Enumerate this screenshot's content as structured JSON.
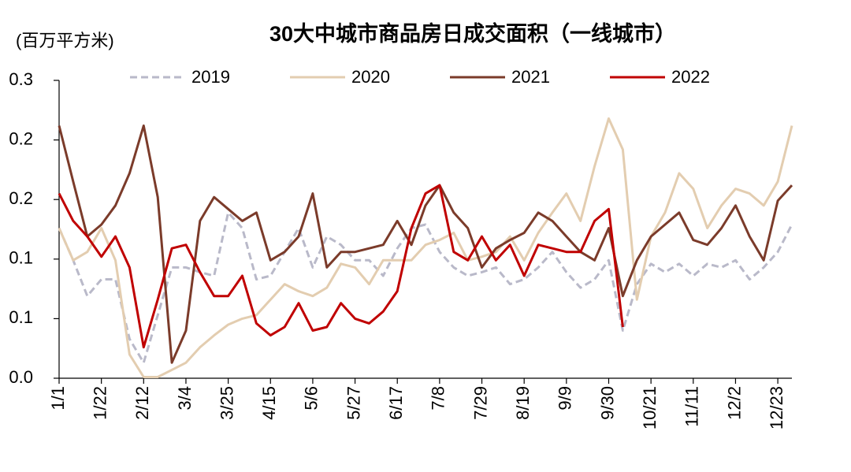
{
  "chart_data": {
    "type": "line",
    "title": "30大中城市商品房日成交面积（一线城市）",
    "y_label": "(百万平方米)",
    "categories": [
      "1/1",
      null,
      null,
      "1/22",
      null,
      null,
      "2/12",
      null,
      null,
      "3/4",
      null,
      null,
      "3/25",
      null,
      null,
      "4/15",
      null,
      null,
      "5/6",
      null,
      null,
      "5/27",
      null,
      null,
      "6/17",
      null,
      null,
      "7/8",
      null,
      null,
      "7/29",
      null,
      null,
      "8/19",
      null,
      null,
      "9/9",
      null,
      null,
      "9/30",
      null,
      null,
      "10/21",
      null,
      null,
      "11/11",
      null,
      null,
      "12/2",
      null,
      null,
      "12/23",
      null
    ],
    "ylim": [
      0,
      0.25
    ],
    "yticks": [
      {
        "value": 0,
        "label": "0.0"
      },
      {
        "value": 0.05,
        "label": "0.1"
      },
      0.1,
      {
        "value": 0.15,
        "label": "0.2"
      },
      0.2,
      {
        "value": 0.25,
        "label": "0.3"
      }
    ],
    "grid": false,
    "legend": "top",
    "series": [
      {
        "name": "2019",
        "color": "#b9b9c9",
        "dash": true,
        "values": [
          0.126,
          0.099,
          0.069,
          0.083,
          0.083,
          0.033,
          0.013,
          0.053,
          0.093,
          0.093,
          0.089,
          0.086,
          0.139,
          0.126,
          0.083,
          0.086,
          0.106,
          0.126,
          0.093,
          0.119,
          0.112,
          0.099,
          0.099,
          0.086,
          0.109,
          0.126,
          0.129,
          0.106,
          0.093,
          0.086,
          0.089,
          0.093,
          0.079,
          0.083,
          0.093,
          0.106,
          0.089,
          0.076,
          0.083,
          0.099,
          0.04,
          0.079,
          0.096,
          0.089,
          0.096,
          0.086,
          0.096,
          0.093,
          0.099,
          0.083,
          0.093,
          0.106,
          0.129
        ]
      },
      {
        "name": "2020",
        "color": "#e3cdb0",
        "dash": false,
        "values": [
          0.126,
          0.099,
          0.106,
          0.126,
          0.099,
          0.02,
          0.001,
          0.001,
          0.007,
          0.013,
          0.026,
          0.036,
          0.045,
          0.05,
          0.053,
          0.066,
          0.079,
          0.073,
          0.069,
          0.076,
          0.096,
          0.093,
          0.079,
          0.099,
          0.099,
          0.099,
          0.112,
          0.116,
          0.122,
          0.099,
          0.102,
          0.106,
          0.119,
          0.099,
          0.122,
          0.139,
          0.155,
          0.132,
          0.178,
          0.218,
          0.192,
          0.066,
          0.119,
          0.139,
          0.172,
          0.159,
          0.126,
          0.145,
          0.159,
          0.155,
          0.145,
          0.165,
          0.212
        ]
      },
      {
        "name": "2021",
        "color": "#7b3b2a",
        "dash": false,
        "values": [
          0.212,
          0.165,
          0.119,
          0.129,
          0.145,
          0.172,
          0.212,
          0.152,
          0.013,
          0.04,
          0.132,
          0.152,
          0.142,
          0.132,
          0.139,
          0.099,
          0.106,
          0.119,
          0.155,
          0.093,
          0.106,
          0.106,
          0.109,
          0.112,
          0.132,
          0.112,
          0.145,
          0.162,
          0.139,
          0.126,
          0.093,
          0.109,
          0.116,
          0.122,
          0.139,
          0.132,
          0.119,
          0.106,
          0.099,
          0.126,
          0.069,
          0.099,
          0.119,
          0.129,
          0.139,
          0.116,
          0.112,
          0.126,
          0.145,
          0.119,
          0.099,
          0.149,
          0.162
        ]
      },
      {
        "name": "2022",
        "color": "#c00000",
        "dash": false,
        "values": [
          0.155,
          0.132,
          0.119,
          0.102,
          0.119,
          0.093,
          0.026,
          0.066,
          0.109,
          0.112,
          0.089,
          0.069,
          0.069,
          0.086,
          0.046,
          0.036,
          0.043,
          0.063,
          0.04,
          0.043,
          0.063,
          0.05,
          0.046,
          0.056,
          0.073,
          0.126,
          0.155,
          0.162,
          0.106,
          0.099,
          0.119,
          0.099,
          0.112,
          0.086,
          0.112,
          0.109,
          0.106,
          0.106,
          0.132,
          0.142,
          0.043,
          null,
          null,
          null,
          null,
          null,
          null,
          null,
          null,
          null,
          null,
          null,
          null
        ]
      }
    ]
  }
}
